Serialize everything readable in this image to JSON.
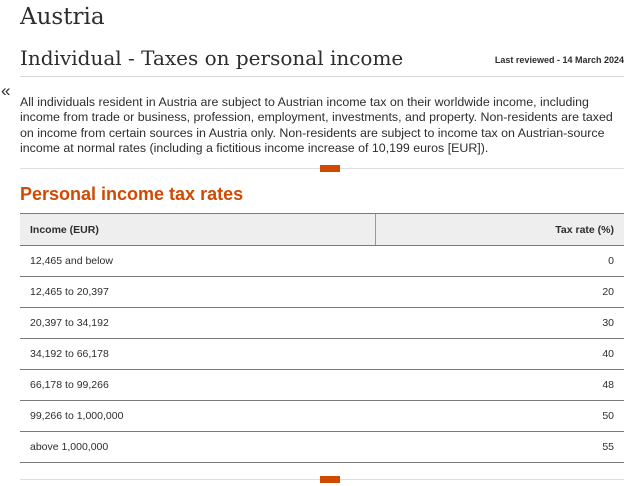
{
  "page": {
    "country": "Austria",
    "section_title": "Individual - Taxes on personal income",
    "last_reviewed": "Last reviewed - 14 March 2024",
    "collapse_glyph": "«",
    "intro": "All individuals resident in Austria are subject to Austrian income tax on their worldwide income, including income from trade or business, profession, employment, investments, and property. Non-residents are taxed on income from certain sources in Austria only. Non-residents are subject to income tax on Austrian-source income at normal rates (including a fictitious income increase of 10,199 euros [EUR]).",
    "accent_color": "#d04a02"
  },
  "rates": {
    "heading": "Personal income tax rates",
    "columns": [
      "Income (EUR)",
      "Tax rate (%)"
    ],
    "rows": [
      {
        "income": "12,465 and below",
        "rate": "0"
      },
      {
        "income": "12,465 to 20,397",
        "rate": "20"
      },
      {
        "income": "20,397 to 34,192",
        "rate": "30"
      },
      {
        "income": "34,192 to 66,178",
        "rate": "40"
      },
      {
        "income": "66,178 to 99,266",
        "rate": "48"
      },
      {
        "income": "99,266 to 1,000,000",
        "rate": "50"
      },
      {
        "income": "above 1,000,000",
        "rate": "55"
      }
    ]
  }
}
